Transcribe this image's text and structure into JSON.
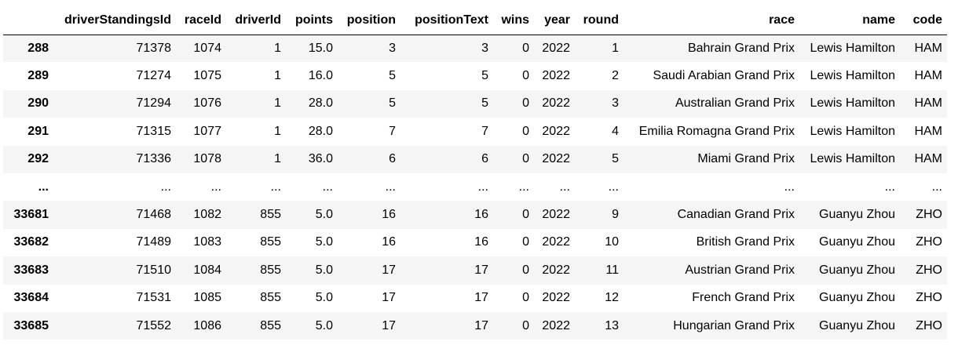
{
  "table": {
    "columns": [
      "",
      "driverStandingsId",
      "raceId",
      "driverId",
      "points",
      "position",
      "positionText",
      "wins",
      "year",
      "round",
      "race",
      "name",
      "code"
    ],
    "rows": [
      [
        "288",
        "71378",
        "1074",
        "1",
        "15.0",
        "3",
        "3",
        "0",
        "2022",
        "1",
        "Bahrain Grand Prix",
        "Lewis Hamilton",
        "HAM"
      ],
      [
        "289",
        "71274",
        "1075",
        "1",
        "16.0",
        "5",
        "5",
        "0",
        "2022",
        "2",
        "Saudi Arabian Grand Prix",
        "Lewis Hamilton",
        "HAM"
      ],
      [
        "290",
        "71294",
        "1076",
        "1",
        "28.0",
        "5",
        "5",
        "0",
        "2022",
        "3",
        "Australian Grand Prix",
        "Lewis Hamilton",
        "HAM"
      ],
      [
        "291",
        "71315",
        "1077",
        "1",
        "28.0",
        "7",
        "7",
        "0",
        "2022",
        "4",
        "Emilia Romagna Grand Prix",
        "Lewis Hamilton",
        "HAM"
      ],
      [
        "292",
        "71336",
        "1078",
        "1",
        "36.0",
        "6",
        "6",
        "0",
        "2022",
        "5",
        "Miami Grand Prix",
        "Lewis Hamilton",
        "HAM"
      ],
      [
        "...",
        "...",
        "...",
        "...",
        "...",
        "...",
        "...",
        "...",
        "...",
        "...",
        "...",
        "...",
        "..."
      ],
      [
        "33681",
        "71468",
        "1082",
        "855",
        "5.0",
        "16",
        "16",
        "0",
        "2022",
        "9",
        "Canadian Grand Prix",
        "Guanyu Zhou",
        "ZHO"
      ],
      [
        "33682",
        "71489",
        "1083",
        "855",
        "5.0",
        "16",
        "16",
        "0",
        "2022",
        "10",
        "British Grand Prix",
        "Guanyu Zhou",
        "ZHO"
      ],
      [
        "33683",
        "71510",
        "1084",
        "855",
        "5.0",
        "17",
        "17",
        "0",
        "2022",
        "11",
        "Austrian Grand Prix",
        "Guanyu Zhou",
        "ZHO"
      ],
      [
        "33684",
        "71531",
        "1085",
        "855",
        "5.0",
        "17",
        "17",
        "0",
        "2022",
        "12",
        "French Grand Prix",
        "Guanyu Zhou",
        "ZHO"
      ],
      [
        "33685",
        "71552",
        "1086",
        "855",
        "5.0",
        "17",
        "17",
        "0",
        "2022",
        "13",
        "Hungarian Grand Prix",
        "Guanyu Zhou",
        "ZHO"
      ]
    ]
  },
  "colors": {
    "stripe": "#f5f5f5",
    "header_border": "#000000"
  }
}
